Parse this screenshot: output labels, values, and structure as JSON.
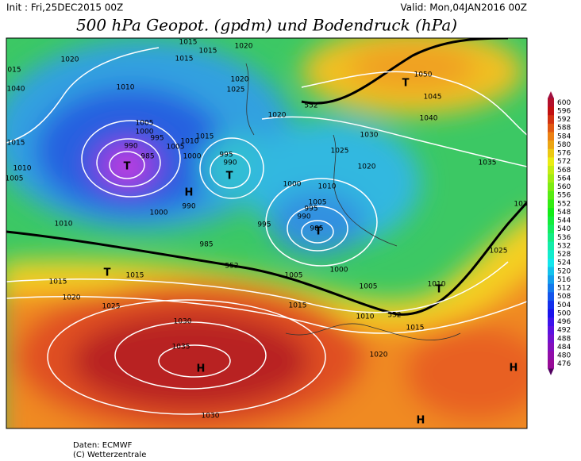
{
  "header": {
    "init": "Init : Fri,25DEC2015 00Z",
    "valid": "Valid: Mon,04JAN2016 00Z"
  },
  "title": "500 hPa Geopot. (gpdm) und Bodendruck (hPa)",
  "map": {
    "isobar_labels": [
      "1015",
      "1015",
      "1020",
      "1020",
      "1015",
      "015",
      "1010",
      "1020",
      "1025",
      "1040",
      "1050",
      "1045",
      "1040",
      "1020",
      "1015",
      "1005",
      "1000",
      "995",
      "990",
      "985",
      "1010",
      "1005",
      "1015",
      "1010",
      "1005",
      "1000",
      "995",
      "990",
      "1030",
      "1025",
      "1020",
      "1035",
      "1000",
      "1010",
      "1005",
      "995",
      "990",
      "985",
      "1000",
      "1010",
      "990",
      "995",
      "985",
      "1025",
      "1005",
      "1000",
      "1005",
      "1010",
      "1015",
      "1015",
      "1020",
      "1025",
      "1015",
      "1010",
      "1015",
      "1030",
      "1035",
      "1020",
      "1030",
      "552",
      "552",
      "552",
      "103"
    ],
    "markers": [
      "T",
      "H",
      "H",
      "H",
      "H",
      "T",
      "T",
      "T",
      "T",
      "T"
    ]
  },
  "colorbar": {
    "levels": [
      600,
      596,
      592,
      588,
      584,
      580,
      576,
      572,
      568,
      564,
      560,
      556,
      552,
      548,
      544,
      540,
      536,
      532,
      528,
      524,
      520,
      516,
      512,
      508,
      504,
      500,
      496,
      492,
      488,
      484,
      480,
      476
    ]
  },
  "footer": {
    "source": "Daten: ECMWF",
    "copyright": "(C) Wetterzentrale"
  }
}
